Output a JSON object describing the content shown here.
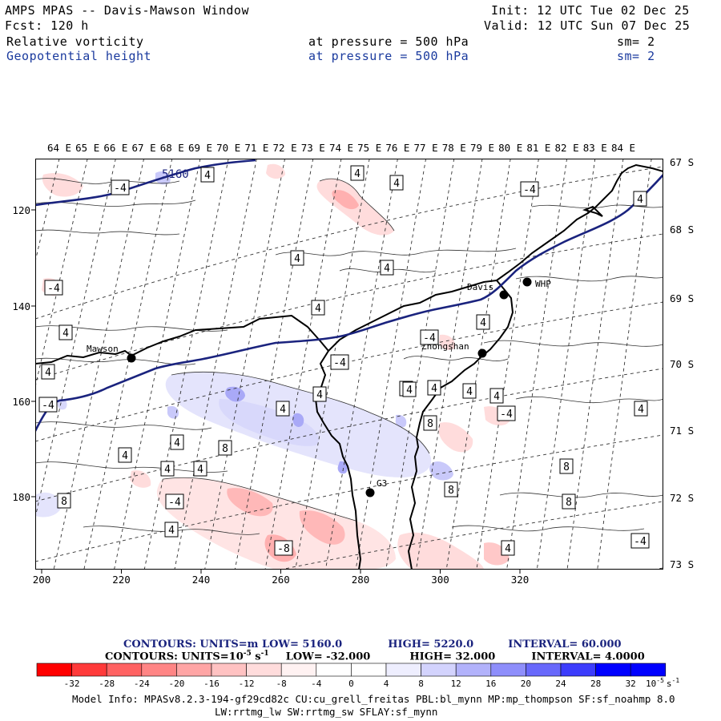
{
  "header": {
    "title": "AMPS MPAS -- Davis-Mawson Window",
    "forecast": "Fcst:  120 h",
    "init": "Init: 12 UTC Tue 02 Dec 25",
    "valid": "Valid: 12 UTC Sun 07 Dec 25",
    "field1_name": "Relative vorticity",
    "field1_level": "at pressure =  500 hPa",
    "field1_sm": "sm= 2",
    "field2_name": "Geopotential height",
    "field2_level": "at pressure =  500 hPa",
    "field2_sm": "sm= 2"
  },
  "colors": {
    "height_line": "#1a237e",
    "coast": "#000000"
  },
  "axes": {
    "top_lon_labels": [
      "64 E",
      "65 E",
      "66 E",
      "67 E",
      "68 E",
      "69 E",
      "70 E",
      "71 E",
      "72 E",
      "73 E",
      "74 E",
      "75 E",
      "76 E",
      "77 E",
      "78 E",
      "79 E",
      "80 E",
      "81 E",
      "82 E",
      "83 E",
      "84 E"
    ],
    "right_lat_labels": [
      "67 S",
      "68 S",
      "69 S",
      "70 S",
      "71 S",
      "72 S",
      "73 S"
    ],
    "left_grid_labels": [
      "120",
      "140",
      "160",
      "180"
    ],
    "bottom_grid_labels": [
      "200",
      "220",
      "240",
      "260",
      "280",
      "300",
      "320"
    ]
  },
  "stations": [
    {
      "name": "Mawson"
    },
    {
      "name": "Davis"
    },
    {
      "name": "WHP"
    },
    {
      "name": "Zhongshan"
    },
    {
      "name": "G3"
    }
  ],
  "contour_labels": {
    "height": "5160",
    "vorticity": [
      "-4",
      "4",
      "4",
      "4",
      "-4",
      "4",
      "4",
      "4",
      "-4",
      "4",
      "4",
      "4",
      "-4",
      "4",
      "4",
      "4",
      "-4",
      "8",
      "8",
      "8",
      "8",
      "4",
      "4",
      "4",
      "4",
      "4",
      "-4",
      "-4",
      "4",
      "8",
      "8",
      "4",
      "-4",
      "4",
      "4",
      "-4",
      "-8",
      "4",
      "4",
      "4"
    ]
  },
  "legend": {
    "line1_label": "CONTOURS:  UNITS=m  LOW=  5160.0",
    "line1_high": "HIGH=  5220.0",
    "line1_interval": "INTERVAL=  60.000",
    "line2_label": "CONTOURS:  UNITS=10",
    "line2_exp": "-5",
    "line2_unit": " s",
    "line2_unit_exp": "-1",
    "line2_low": "LOW=  -32.000",
    "line2_high": "HIGH=  32.000",
    "line2_interval": "INTERVAL=   4.0000",
    "colorbar_ticks": [
      "-32",
      "-28",
      "-24",
      "-20",
      "-16",
      "-12",
      "-8",
      "-4",
      "0",
      "4",
      "8",
      "12",
      "16",
      "20",
      "24",
      "28",
      "32"
    ],
    "colorbar_unit": "10",
    "colorbar_unit_exp": "-5",
    "colorbar_unit_s": "s",
    "colorbar_unit_s_exp": "-1",
    "colorbar_colors": [
      "#ff0000",
      "#ff3a3a",
      "#ff6262",
      "#ff8585",
      "#ffa5a5",
      "#ffc2c2",
      "#ffdcdc",
      "#fff2f2",
      "#ffffff",
      "#ffffff",
      "#eeeefe",
      "#d3d3fd",
      "#b2b2fb",
      "#8e8efb",
      "#6868fb",
      "#3c3cfc",
      "#0000ff",
      "#0000ff"
    ]
  },
  "model_info": {
    "line1": "Model Info: MPASv8.2.3-194-gf29cd82c CU:cu_grell_freitas PBL:bl_mynn MP:mp_thompson SF:sf_noahmp 8.0",
    "line2": "LW:rrtmg_lw SW:rrtmg_sw SFLAY:sf_mynn"
  }
}
